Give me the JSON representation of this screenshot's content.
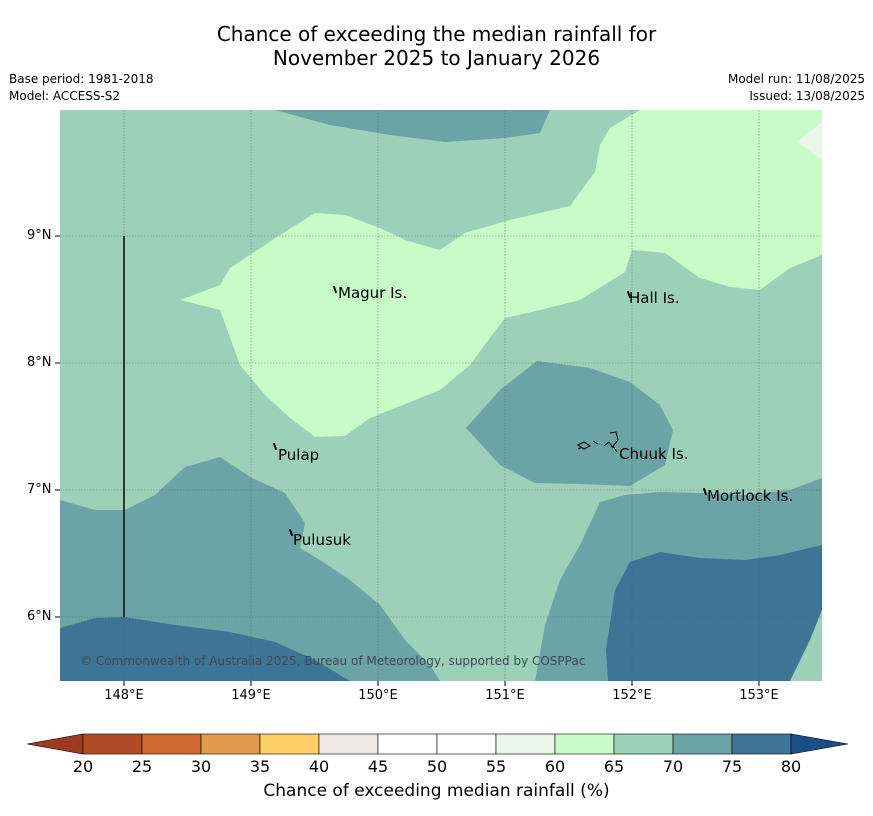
{
  "title": {
    "line1": "Chance of exceeding the median rainfall for",
    "line2": "November 2025 to January 2026"
  },
  "meta": {
    "base_period": "Base period: 1981-2018",
    "model": "Model: ACCESS-S2",
    "model_run": "Model run: 11/08/2025",
    "issued": "Issued: 13/08/2025"
  },
  "axes": {
    "lat_labels": [
      "9°N",
      "8°N",
      "7°N",
      "6°N"
    ],
    "lon_labels": [
      "148°E",
      "149°E",
      "150°E",
      "151°E",
      "152°E",
      "153°E"
    ]
  },
  "places": [
    "Magur Is.",
    "Hall Is.",
    "Pulap",
    "Chuuk Is.",
    "Mortlock Is.",
    "Pulusuk"
  ],
  "copyright": "© Commonwealth of Australia 2025, Bureau of Meteorology, supported by COSPPac",
  "colorbar": {
    "ticks": [
      "20",
      "25",
      "30",
      "35",
      "40",
      "45",
      "50",
      "55",
      "60",
      "65",
      "70",
      "75",
      "80"
    ],
    "label": "Chance of exceeding median rainfall (%)",
    "colors": [
      "#b34a27",
      "#cf6835",
      "#e29a4c",
      "#fdcd63",
      "#eeeae3",
      "#ffffff",
      "#ffffff",
      "#e9f6e9",
      "#c8fbc8",
      "#9dd0b8",
      "#6ba3a6",
      "#3e7597"
    ],
    "under_color": "#9d3a1f",
    "over_color": "#1a4f86"
  },
  "map_colors": {
    "c60_65": "#c8fbc8",
    "c65_70": "#9dd0b8",
    "c70_75": "#6ba3a6",
    "c75_80": "#3e7597",
    "c55_60": "#e9f6e9"
  }
}
